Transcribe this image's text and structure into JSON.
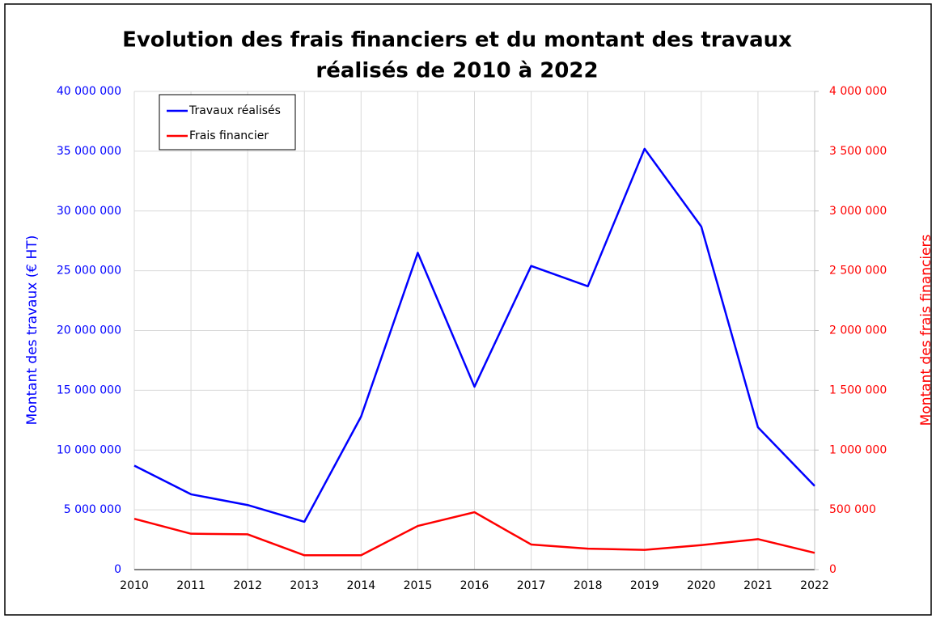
{
  "chart_data": {
    "type": "line",
    "title": [
      "Evolution des frais financiers et du montant des travaux",
      "réalisés de 2010 à 2022"
    ],
    "y_label": "Montant des travaux (€ HT)",
    "y2_label": "Montant des frais financiers",
    "categories": [
      "2010",
      "2011",
      "2012",
      "2013",
      "2014",
      "2015",
      "2016",
      "2017",
      "2018",
      "2019",
      "2020",
      "2021",
      "2022"
    ],
    "series": [
      {
        "name": "Travaux réalisés",
        "color": "#0000ff",
        "values": [
          8700000,
          6300000,
          5400000,
          4000000,
          12800000,
          26500000,
          15300000,
          25400000,
          23700000,
          35200000,
          28700000,
          11900000,
          7000000
        ]
      },
      {
        "name": "Frais financier",
        "color": "#ff0000",
        "axis": "y2",
        "values": [
          425000,
          300000,
          295000,
          120000,
          120000,
          365000,
          480000,
          210000,
          175000,
          165000,
          205000,
          255000,
          140000
        ]
      }
    ],
    "ylim": [
      0,
      40000000
    ],
    "yticks": [
      0,
      {
        "value": 5000000,
        "label": "5 000 000"
      },
      {
        "value": 10000000,
        "label": "10 000 000"
      },
      {
        "value": 15000000,
        "label": "15 000 000"
      },
      {
        "value": 20000000,
        "label": "20 000 000"
      },
      {
        "value": 25000000,
        "label": "25 000 000"
      },
      {
        "value": 30000000,
        "label": "30 000 000"
      },
      {
        "value": 35000000,
        "label": "35 000 000"
      },
      {
        "value": 40000000,
        "label": "40 000 000"
      }
    ],
    "y2lim": [
      0,
      4000000
    ],
    "y2ticks": [
      0,
      {
        "value": 500000,
        "label": "500 000"
      },
      {
        "value": 1000000,
        "label": "1 000 000"
      },
      {
        "value": 1500000,
        "label": "1 500 000"
      },
      {
        "value": 2000000,
        "label": "2 000 000"
      },
      {
        "value": 2500000,
        "label": "2 500 000"
      },
      {
        "value": 3000000,
        "label": "3 000 000"
      },
      {
        "value": 3500000,
        "label": "3 500 000"
      },
      {
        "value": 4000000,
        "label": "4 000 000"
      }
    ],
    "grid": true,
    "legend": "upper left"
  }
}
